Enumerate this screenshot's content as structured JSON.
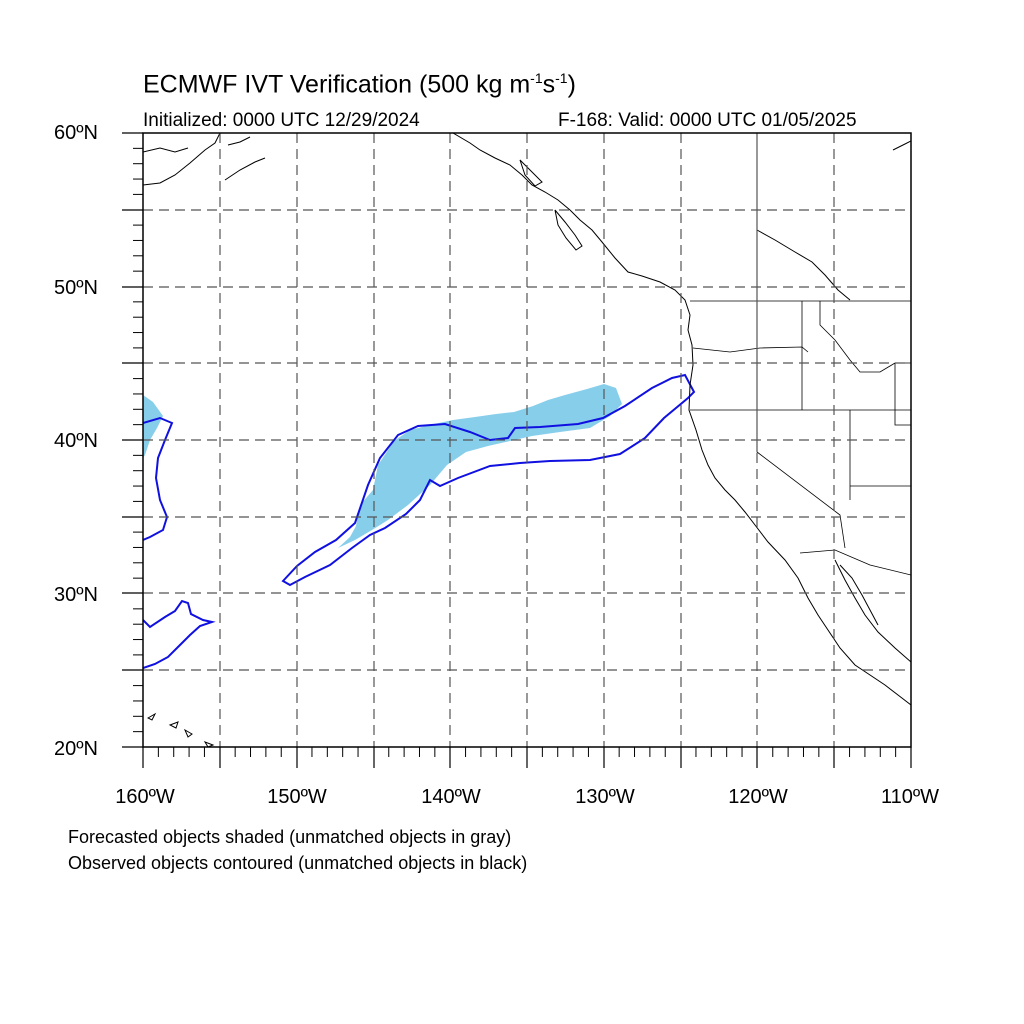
{
  "title": {
    "main": "ECMWF IVT Verification (500 kg m",
    "exp1": "-1",
    "mid": "s",
    "exp2": "-1",
    "end": ")"
  },
  "subtitle": {
    "initialized": "Initialized: 0000 UTC 12/29/2024",
    "valid": "F-168: Valid: 0000 UTC 01/05/2025"
  },
  "axes": {
    "lat_labels": [
      "60ºN",
      "50ºN",
      "40ºN",
      "30ºN",
      "20ºN"
    ],
    "lon_labels": [
      "160ºW",
      "150ºW",
      "140ºW",
      "130ºW",
      "120ºW",
      "110ºW"
    ],
    "lat_range": [
      20,
      60
    ],
    "lon_range": [
      -160,
      -110
    ],
    "grid": "dashed, every 5 degrees"
  },
  "legend_notes": {
    "forecast": "Forecasted objects shaded (unmatched objects in gray)",
    "observed": "Observed objects contoured (unmatched objects in black)"
  },
  "colors": {
    "forecast_fill": "#87ceeb",
    "observed_contour": "#1010e0",
    "coast": "#000000",
    "grid": "#555555"
  }
}
